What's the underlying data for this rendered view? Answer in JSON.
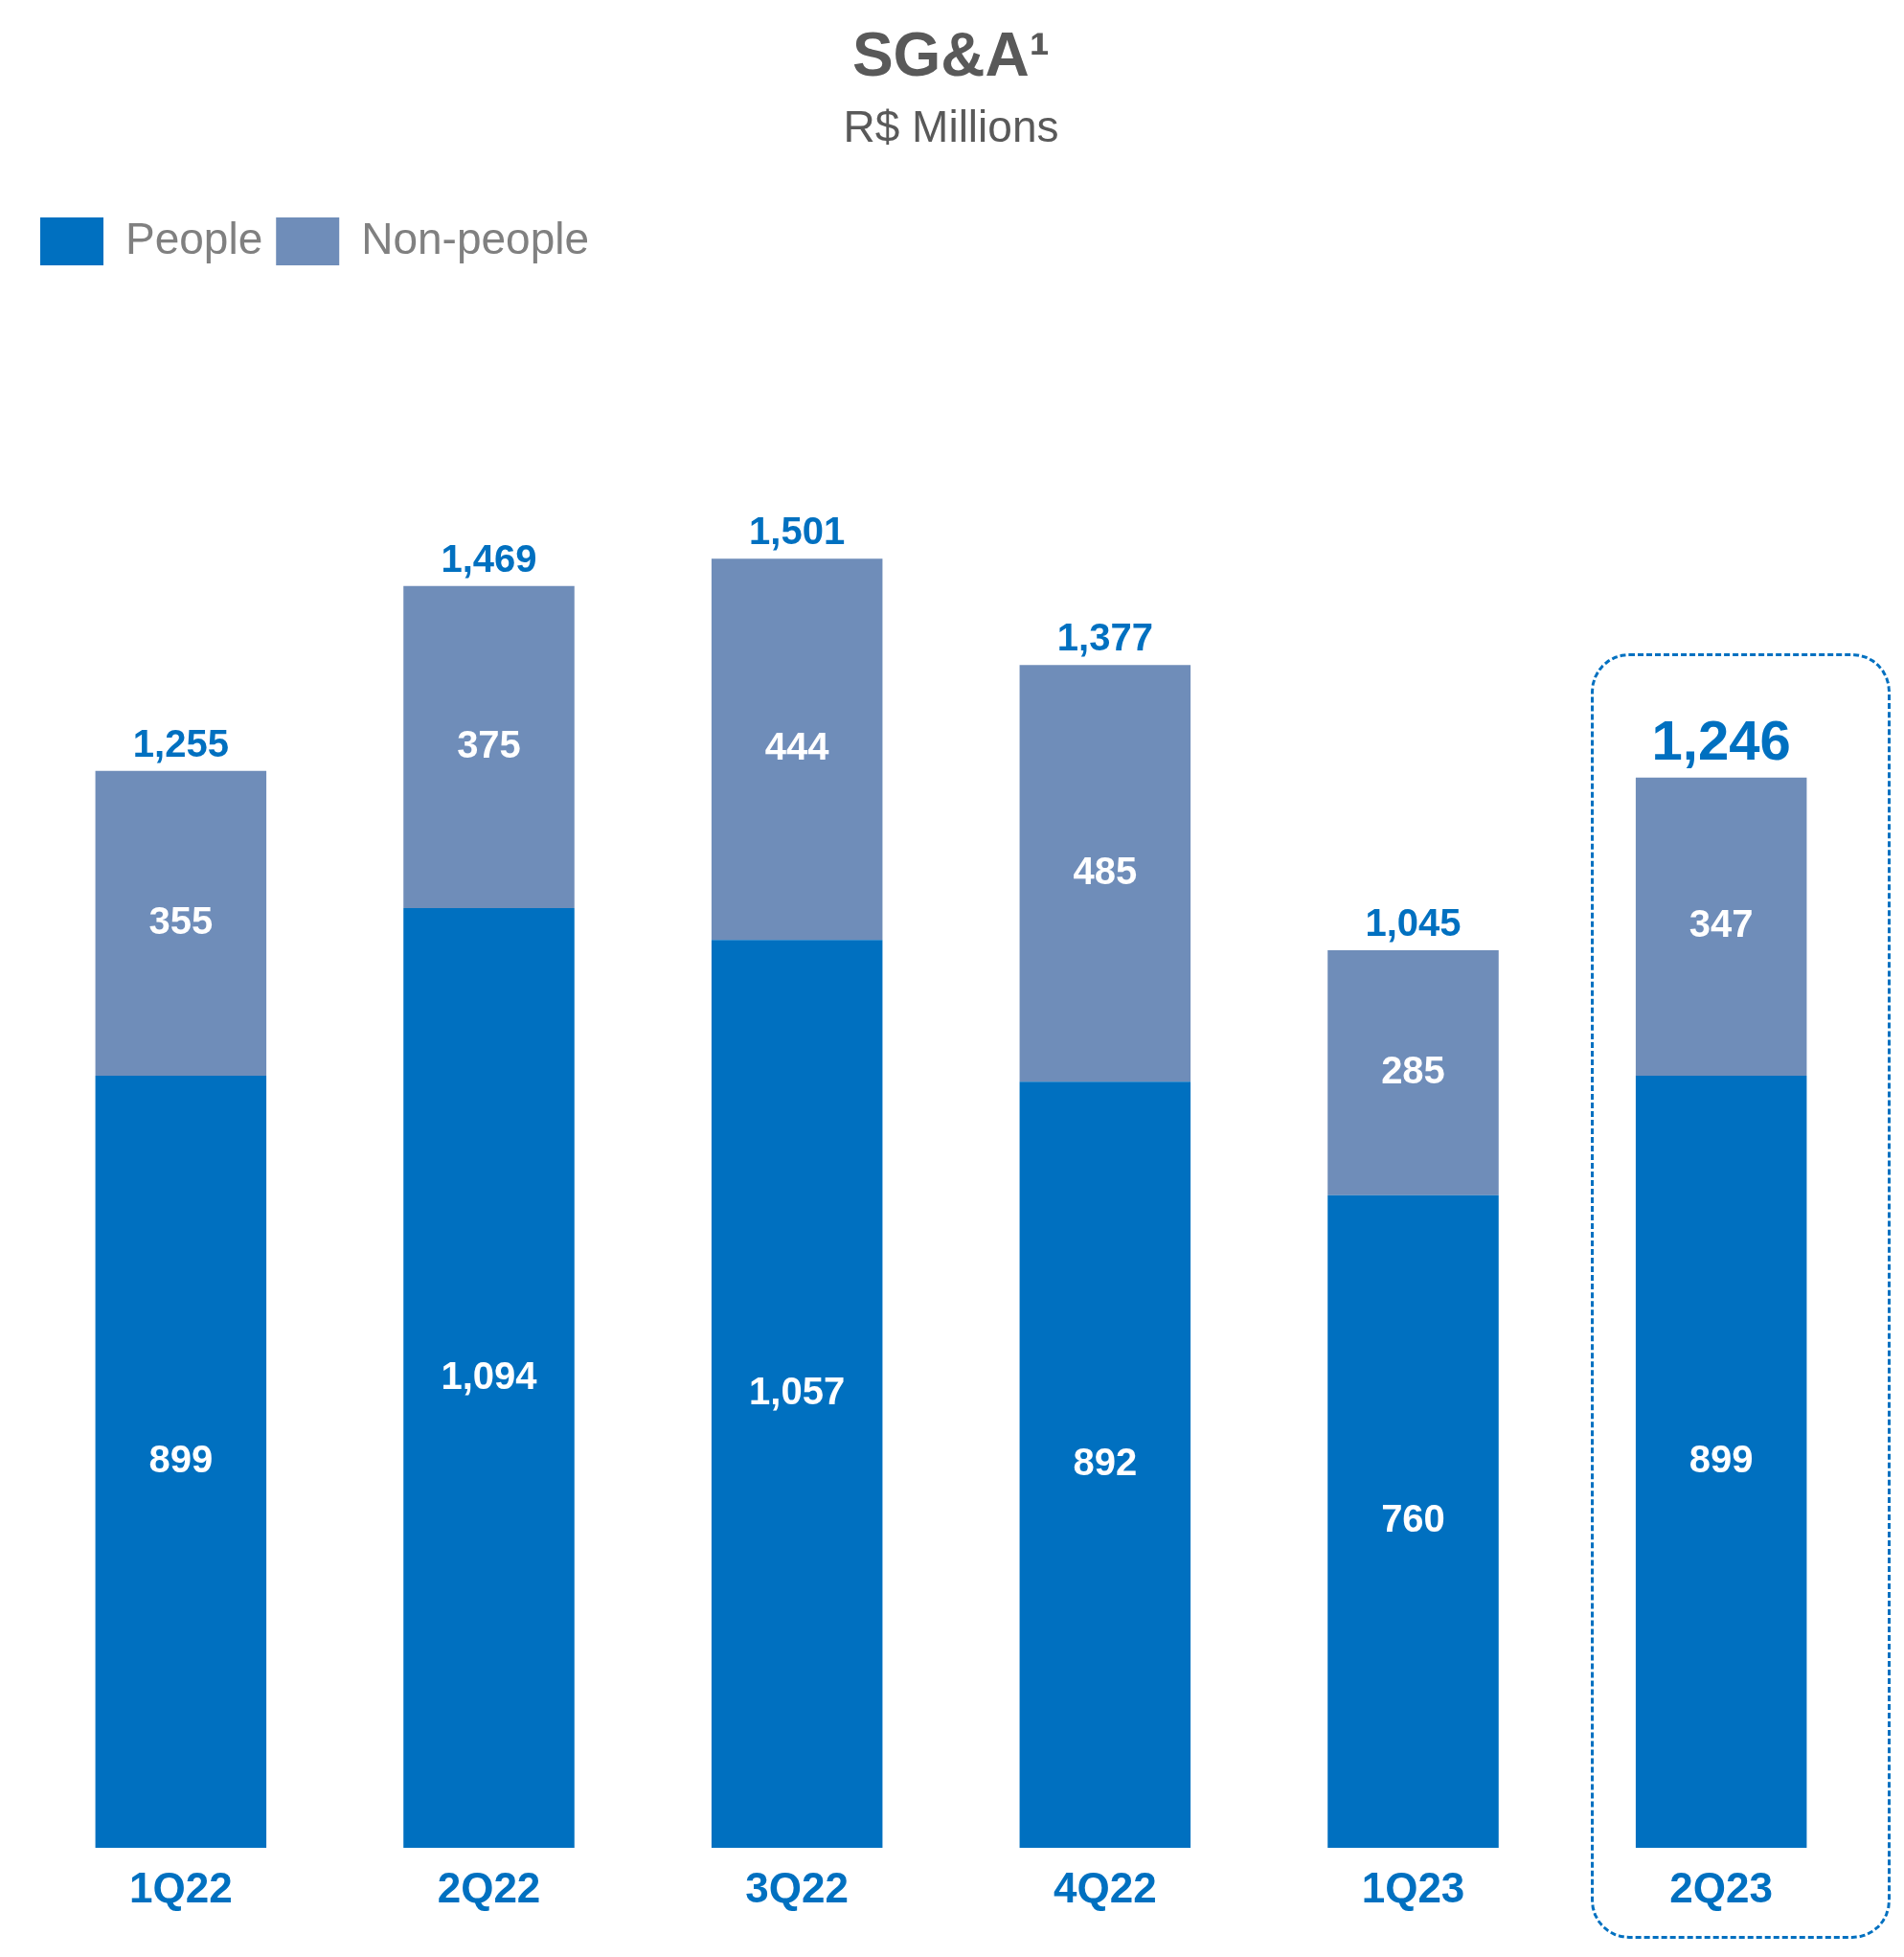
{
  "chart_data": {
    "type": "bar",
    "title": "SG&A¹",
    "subtitle": "R$ Millions",
    "stacked": true,
    "legend": "top left",
    "grid": false,
    "categories": [
      "1Q22",
      "2Q22",
      "3Q22",
      "4Q22",
      "1Q23",
      "2Q23"
    ],
    "series": [
      {
        "name": "People",
        "color": "#0070c0",
        "values": [
          899,
          1094,
          1057,
          892,
          760,
          899
        ],
        "value_labels": [
          "899",
          "1,094",
          "1,057",
          "892",
          "760",
          "899"
        ]
      },
      {
        "name": "Non-people",
        "color": "#6f8db9",
        "values": [
          355,
          375,
          444,
          485,
          285,
          347
        ],
        "value_labels": [
          "355",
          "375",
          "444",
          "485",
          "285",
          "347"
        ]
      }
    ],
    "totals": [
      "1,255",
      "1,469",
      "1,501",
      "1,377",
      "1,045",
      "1,246"
    ]
  }
}
